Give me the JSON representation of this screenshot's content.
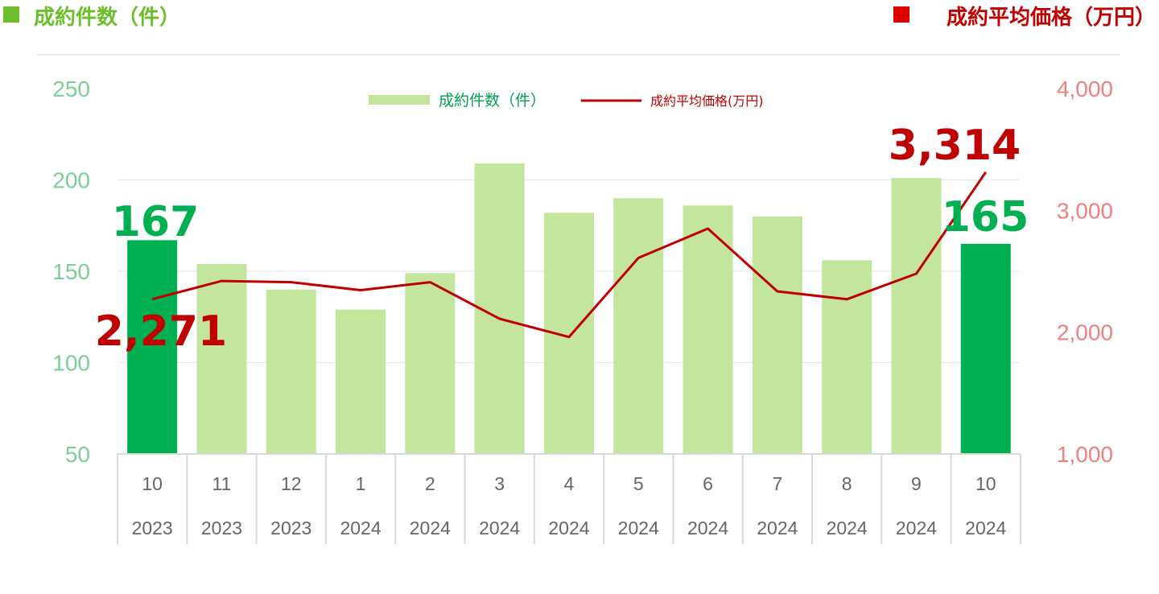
{
  "header": {
    "left_title": "成約件数（件）",
    "right_title": "成約平均価格（万円）",
    "left_color": "#6cbf2a",
    "right_color": "#c00000"
  },
  "chart_data": {
    "type": "bar+line",
    "categories": [
      {
        "month": "10",
        "year": "2023"
      },
      {
        "month": "11",
        "year": "2023"
      },
      {
        "month": "12",
        "year": "2023"
      },
      {
        "month": "1",
        "year": "2024"
      },
      {
        "month": "2",
        "year": "2024"
      },
      {
        "month": "3",
        "year": "2024"
      },
      {
        "month": "4",
        "year": "2024"
      },
      {
        "month": "5",
        "year": "2024"
      },
      {
        "month": "6",
        "year": "2024"
      },
      {
        "month": "7",
        "year": "2024"
      },
      {
        "month": "8",
        "year": "2024"
      },
      {
        "month": "9",
        "year": "2024"
      },
      {
        "month": "10",
        "year": "2024"
      }
    ],
    "series": [
      {
        "name": "成約件数（件）",
        "type": "bar",
        "axis": "left",
        "values": [
          167,
          154,
          140,
          129,
          149,
          209,
          182,
          190,
          186,
          180,
          156,
          201,
          165
        ],
        "highlight": [
          0,
          12
        ],
        "color": "#c4e59e",
        "highlight_color": "#00b050"
      },
      {
        "name": "成約平均価格(万円)",
        "type": "line",
        "axis": "right",
        "values": [
          2271,
          2420,
          2410,
          2345,
          2410,
          2110,
          1960,
          2610,
          2850,
          2335,
          2270,
          2480,
          3314
        ],
        "color": "#c00000"
      }
    ],
    "left_axis": {
      "min": 50,
      "max": 250,
      "ticks": [
        "250",
        "200",
        "150",
        "100",
        "50"
      ]
    },
    "right_axis": {
      "min": 1000,
      "max": 4000,
      "ticks": [
        "4,000",
        "3,000",
        "2,000",
        "1,000"
      ]
    },
    "annotations": {
      "first_bar": "167",
      "last_bar": "165",
      "first_price": "2,271",
      "last_price": "3,314"
    },
    "grid": true,
    "legend_position": "top-center"
  }
}
